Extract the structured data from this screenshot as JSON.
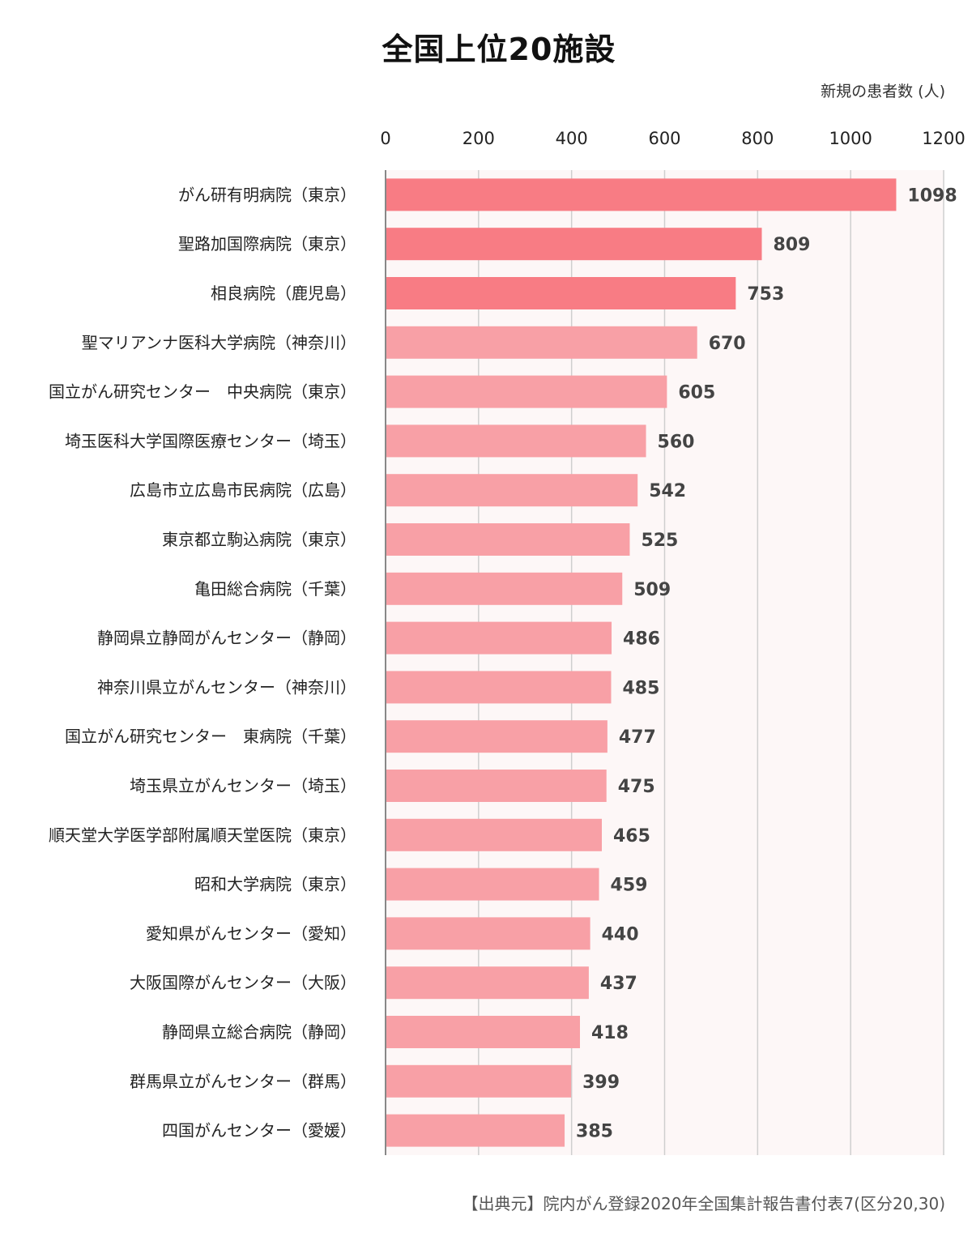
{
  "chart_data": {
    "type": "bar",
    "orientation": "horizontal",
    "title": "全国上位20施設",
    "unit_label": "新規の患者数 (人)",
    "source": "【出典元】院内がん登録2020年全国集計報告書付表7(区分20,30)",
    "xlim": [
      0,
      1200
    ],
    "x_ticks": [
      0,
      200,
      400,
      600,
      800,
      1000,
      1200
    ],
    "grid": true,
    "categories": [
      "がん研有明病院（東京）",
      "聖路加国際病院（東京）",
      "相良病院（鹿児島）",
      "聖マリアンナ医科大学病院（神奈川）",
      "国立がん研究センター　中央病院（東京）",
      "埼玉医科大学国際医療センター（埼玉）",
      "広島市立広島市民病院（広島）",
      "東京都立駒込病院（東京）",
      "亀田総合病院（千葉）",
      "静岡県立静岡がんセンター（静岡）",
      "神奈川県立がんセンター（神奈川）",
      "国立がん研究センター　東病院（千葉）",
      "埼玉県立がんセンター（埼玉）",
      "順天堂大学医学部附属順天堂医院（東京）",
      "昭和大学病院（東京）",
      "愛知県がんセンター（愛知）",
      "大阪国際がんセンター（大阪）",
      "静岡県立総合病院（静岡）",
      "群馬県立がんセンター（群馬）",
      "四国がんセンター（愛媛）"
    ],
    "values": [
      1098,
      809,
      753,
      670,
      605,
      560,
      542,
      525,
      509,
      486,
      485,
      477,
      475,
      465,
      459,
      440,
      437,
      418,
      399,
      385
    ],
    "highlight_top_n": 3,
    "colors": {
      "highlight": "#f87c84",
      "normal": "#f8a0a6",
      "plot_background": "#fdf7f7",
      "grid": "#cfcfcf",
      "axis": "#888888"
    }
  }
}
